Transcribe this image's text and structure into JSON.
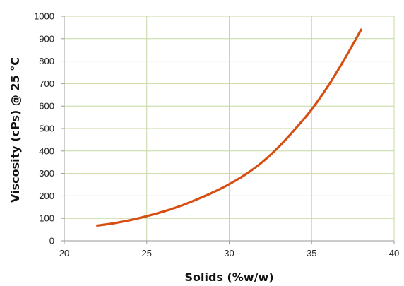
{
  "chart_data": {
    "type": "line",
    "title": "",
    "xlabel": "Solids (%w/w)",
    "ylabel": "Viscosity (cPs) @ 25 °C",
    "xlim": [
      20,
      40
    ],
    "ylim": [
      0,
      1000
    ],
    "xticks": [
      "20",
      "25",
      "30",
      "35",
      "40"
    ],
    "yticks": [
      "0",
      "100",
      "200",
      "300",
      "400",
      "500",
      "600",
      "700",
      "800",
      "900",
      "1000"
    ],
    "grid": true,
    "legend": "none",
    "series": [
      {
        "color": "#d64e12",
        "x": [
          22,
          23,
          24,
          25,
          26,
          27,
          28,
          29,
          30,
          31,
          32,
          33,
          34,
          35,
          36,
          37,
          38
        ],
        "y": [
          68,
          78,
          92,
          110,
          130,
          154,
          183,
          215,
          252,
          296,
          350,
          418,
          498,
          585,
          690,
          810,
          940
        ]
      }
    ],
    "colors": {
      "grid": "#c6d9a0",
      "axis": "#9a9a9a",
      "line": "#d64e12"
    }
  }
}
